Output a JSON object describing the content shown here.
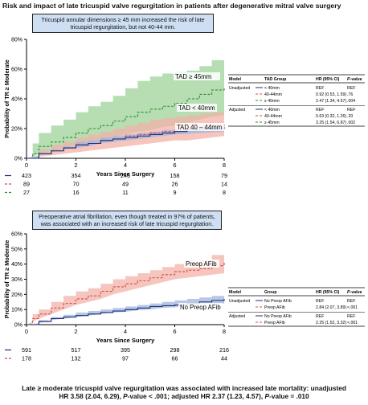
{
  "title": "Risk and impact of late tricuspid valve regurgitation in patients after degenerative mitral valve surgery",
  "chart_data": [
    {
      "type": "line",
      "banner": [
        "Tricuspid annular dimensions ≥ 45 mm  increased the risk of late",
        "tricuspid regurgitation, but not 40-44 mm."
      ],
      "xlabel": "Years Since Surgery",
      "ylabel": "Probability of TR ≥ Moderate",
      "xlim": [
        0,
        8
      ],
      "ylim": [
        0,
        80
      ],
      "xticks": [
        "0",
        "2",
        "4",
        "6",
        "8"
      ],
      "yticks": [
        "0%",
        "20%",
        "40%",
        "60%",
        "80%"
      ],
      "series": [
        {
          "name": "TAD ≥ 45mm",
          "color": "#2e8b2e",
          "band": "#9fd39a",
          "dash": "3,2",
          "x": [
            0,
            0.25,
            0.5,
            1,
            1.5,
            2,
            2.5,
            3,
            3.5,
            4,
            4.5,
            5,
            5.5,
            6,
            6.5,
            7,
            7.5,
            8
          ],
          "y": [
            0,
            3,
            8,
            11,
            14,
            17,
            20,
            22,
            25,
            28,
            31,
            33,
            35,
            37,
            40,
            43,
            46,
            47
          ],
          "lo": [
            0,
            1,
            3,
            5,
            7,
            9,
            11,
            12,
            14,
            16,
            18,
            19,
            21,
            22,
            24,
            26,
            28,
            29
          ],
          "hi": [
            0,
            10,
            17,
            22,
            26,
            31,
            35,
            38,
            42,
            47,
            52,
            55,
            57,
            58,
            59,
            62,
            66,
            68
          ]
        },
        {
          "name": "TAD 40 – 44mm",
          "color": "#d24b4b",
          "band": "#f2b2a8",
          "dash": "3,2",
          "x": [
            0,
            0.5,
            1,
            1.5,
            2,
            2.5,
            3,
            3.5,
            4,
            4.5,
            5,
            5.5,
            6,
            6.5,
            7,
            7.5,
            8
          ],
          "y": [
            0,
            3,
            5,
            7,
            9,
            10,
            12,
            13,
            15,
            16,
            17,
            18,
            19,
            20,
            21,
            22,
            23
          ],
          "lo": [
            0,
            1,
            2,
            3,
            4,
            5,
            6,
            7,
            8,
            9,
            10,
            11,
            12,
            12,
            13,
            14,
            15
          ],
          "hi": [
            0,
            6,
            9,
            11,
            14,
            16,
            18,
            20,
            22,
            24,
            26,
            27,
            28,
            29,
            30,
            31,
            32
          ]
        },
        {
          "name": "TAD < 40mm",
          "color": "#1e2f6b",
          "band": "#9fb4e2",
          "dash": "",
          "x": [
            0,
            0.5,
            1,
            1.5,
            2,
            2.5,
            3,
            3.5,
            4,
            4.5,
            5,
            5.5,
            6,
            6.5,
            7,
            7.5,
            8
          ],
          "y": [
            0,
            3,
            5,
            7,
            9,
            10,
            12,
            13,
            14,
            15,
            16,
            17,
            18,
            19,
            19.5,
            20,
            21
          ],
          "lo": [
            0,
            2,
            4,
            6,
            7,
            8,
            10,
            11,
            12,
            13,
            14,
            15,
            16,
            16.5,
            17,
            17.5,
            18
          ],
          "hi": [
            0,
            4,
            6,
            8,
            11,
            12,
            14,
            15,
            16,
            17,
            18,
            19,
            20,
            21,
            22,
            22.5,
            23
          ]
        }
      ],
      "labels": [
        "TAD ≥ 45mm",
        "TAD < 40mm",
        "TAD 40 – 44mm"
      ],
      "risk_table": {
        "times": [
          0,
          2,
          4,
          6,
          8
        ],
        "rows": [
          {
            "color": "#1e2f6b",
            "dash": "",
            "values": [
              "423",
              "354",
              "246",
              "158",
              "79"
            ]
          },
          {
            "color": "#d24b4b",
            "dash": "3,2",
            "values": [
              "89",
              "70",
              "49",
              "26",
              "14"
            ]
          },
          {
            "color": "#2e8b2e",
            "dash": "3,2",
            "values": [
              "27",
              "16",
              "11",
              "9",
              "8"
            ]
          }
        ]
      },
      "hr_table": {
        "headers": [
          "Model",
          "TAD Group",
          "HR (95% CI)",
          "P-value"
        ],
        "rows": [
          {
            "model": "Unadjusted",
            "group": "< 40mm",
            "color": "#1e2f6b",
            "dash": "",
            "hr": "REF",
            "p": "REF"
          },
          {
            "model": "",
            "group": "40-44mm",
            "color": "#d24b4b",
            "dash": "3,2",
            "hr": "0.92 (0.53, 1.59)",
            "p": ".76"
          },
          {
            "model": "",
            "group": "≥ 45mm",
            "color": "#2e8b2e",
            "dash": "3,2",
            "hr": "2.47 (1.34, 4.57)",
            "p": ".004"
          },
          {
            "model": "Adjusted",
            "group": "< 40mm",
            "color": "#1e2f6b",
            "dash": "",
            "hr": "REF",
            "p": "REF"
          },
          {
            "model": "",
            "group": "40-44mm",
            "color": "#d24b4b",
            "dash": "3,2",
            "hr": "0.63 (0.32, 1.26)",
            "p": ".20"
          },
          {
            "model": "",
            "group": "≥ 45mm",
            "color": "#2e8b2e",
            "dash": "3,2",
            "hr": "3.25 (1.54, 6.87)",
            "p": ".002"
          }
        ]
      }
    },
    {
      "type": "line",
      "banner": [
        "Preoperative atrial fibrillation, even though treated in 97% of patients,",
        "was associated with an increased risk of late tricuspid regurgitation."
      ],
      "xlabel": "Years Since Surgery",
      "ylabel": "Probability of TR ≥ Moderate",
      "xlim": [
        0,
        8
      ],
      "ylim": [
        0,
        60
      ],
      "xticks": [
        "0",
        "2",
        "4",
        "6",
        "8"
      ],
      "yticks": [
        "0%",
        "10%",
        "20%",
        "30%",
        "40%",
        "50%",
        "60%"
      ],
      "series": [
        {
          "name": "Preop AFib",
          "color": "#d24b4b",
          "band": "#f2b2a8",
          "dash": "3,2",
          "x": [
            0,
            0.25,
            0.5,
            1,
            1.5,
            2,
            2.5,
            3,
            3.5,
            4,
            4.5,
            5,
            5.5,
            6,
            6.5,
            7,
            7.5,
            8
          ],
          "y": [
            0,
            4,
            7,
            11,
            14,
            17,
            19,
            22,
            25,
            27,
            29,
            31,
            33,
            35,
            36,
            37,
            39,
            41
          ],
          "lo": [
            0,
            2,
            4,
            7,
            10,
            13,
            15,
            17,
            20,
            22,
            24,
            26,
            28,
            30,
            31,
            32,
            33,
            34
          ],
          "hi": [
            0,
            7,
            10,
            15,
            19,
            22,
            24,
            27,
            30,
            32,
            34,
            36,
            38,
            40,
            41,
            43,
            46,
            48
          ]
        },
        {
          "name": "No Preop AFib",
          "color": "#1e2f6b",
          "band": "#9fb4e2",
          "dash": "",
          "x": [
            0,
            0.5,
            1,
            1.5,
            2,
            2.5,
            3,
            3.5,
            4,
            4.5,
            5,
            5.5,
            6,
            6.5,
            7,
            7.5,
            8
          ],
          "y": [
            0,
            2,
            4,
            5,
            6,
            7,
            8,
            9,
            10,
            11,
            12,
            12.5,
            13,
            14,
            15,
            16,
            17
          ],
          "lo": [
            0,
            1,
            3,
            4,
            5,
            6,
            7,
            8,
            8.5,
            9.5,
            10,
            11,
            11.5,
            12,
            13,
            13.5,
            14
          ],
          "hi": [
            0,
            3,
            5,
            6.5,
            8,
            9,
            10,
            11,
            12,
            13,
            14,
            15,
            16,
            17,
            18,
            19,
            20
          ]
        }
      ],
      "labels": [
        "Preop AFib",
        "No Preop AFib"
      ],
      "risk_table": {
        "times": [
          0,
          2,
          4,
          6,
          8
        ],
        "rows": [
          {
            "color": "#1e2f6b",
            "dash": "",
            "values": [
              "591",
              "517",
              "395",
              "298",
              "216"
            ]
          },
          {
            "color": "#d24b4b",
            "dash": "3,2",
            "values": [
              "178",
              "132",
              "97",
              "66",
              "44"
            ]
          }
        ]
      },
      "hr_table": {
        "headers": [
          "Model",
          "Group",
          "HR (95% CI)",
          "P-value"
        ],
        "rows": [
          {
            "model": "Unadjusted",
            "group": "No Preop AFib",
            "color": "#1e2f6b",
            "dash": "",
            "hr": "REF",
            "p": "REF"
          },
          {
            "model": "",
            "group": "Preop AFib",
            "color": "#d24b4b",
            "dash": "3,2",
            "hr": "2.84 (2.07, 3.89)",
            "p": "<.001"
          },
          {
            "model": "Adjusted",
            "group": "No Preop AFib",
            "color": "#1e2f6b",
            "dash": "",
            "hr": "REF",
            "p": "REF"
          },
          {
            "model": "",
            "group": "Preop AFib",
            "color": "#d24b4b",
            "dash": "3,2",
            "hr": "2.25 (1.52, 3.32)",
            "p": "<.001"
          }
        ]
      }
    }
  ],
  "footer": {
    "line1": "Late ≥ moderate tricuspid valve regurgitation was associated with increased late mortality: unadjusted",
    "line2a": "HR 3.58 (2.04, 6.29), ",
    "p1": "P",
    "line2b": "-value < .001; adjusted HR 2.37 (1.23, 4.57), ",
    "p2": "P",
    "line2c": "-value = .010"
  }
}
